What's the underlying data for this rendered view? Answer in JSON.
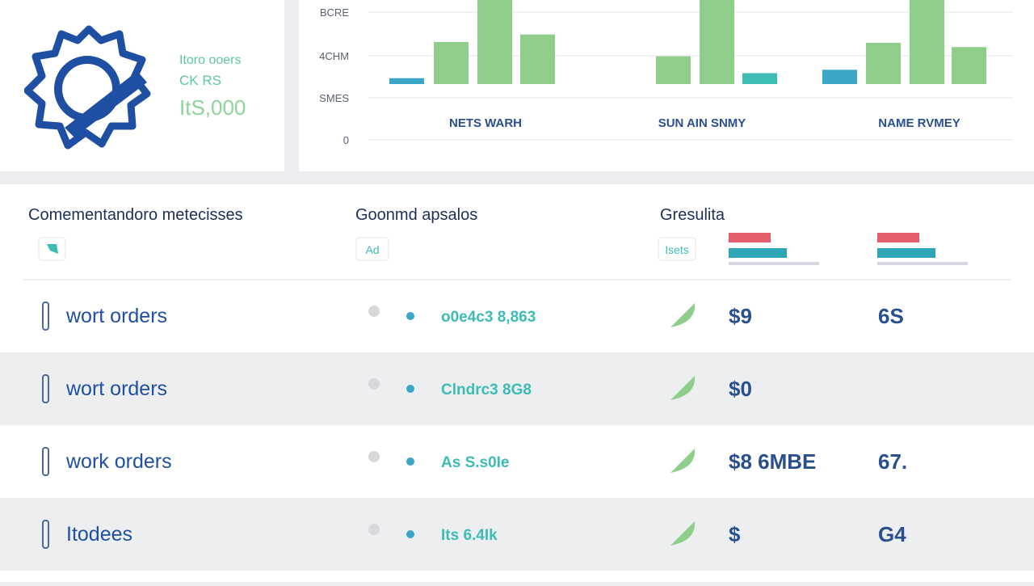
{
  "summary": {
    "line1": "Itoro ooers",
    "line2": "CK RS",
    "amount": "ItS,000"
  },
  "chart": {
    "type": "bar",
    "y_labels": [
      "BCRE",
      "4CHM",
      "SMES",
      "0"
    ],
    "ylim": [
      0,
      100
    ],
    "groups": [
      {
        "label": "NETS WARH",
        "bars": [
          {
            "value": 7,
            "color": "#3aa6c8"
          },
          {
            "value": 50,
            "color": "#8fce8a"
          },
          {
            "value": 100,
            "color": "#8fce8a"
          },
          {
            "value": 59,
            "color": "#8fce8a"
          }
        ]
      },
      {
        "label": "SUN AIN SNMY",
        "bars": [
          {
            "value": 33,
            "color": "#8fce8a"
          },
          {
            "value": 100,
            "color": "#8fce8a"
          },
          {
            "value": 13,
            "color": "#3dbcb4"
          }
        ]
      },
      {
        "label": "NAME RVMEY",
        "bars": [
          {
            "value": 17,
            "color": "#3aa6c8"
          },
          {
            "value": 49,
            "color": "#8fce8a"
          },
          {
            "value": 100,
            "color": "#8fce8a"
          },
          {
            "value": 44,
            "color": "#8fce8a"
          }
        ]
      }
    ]
  },
  "table": {
    "headers": [
      "Comementandoro metecisses",
      "Goonmd apsalos",
      "Gresulita"
    ],
    "badges": [
      "Ad",
      "Isets"
    ],
    "rows": [
      [
        "wort orders",
        "o0e4c3 8,863",
        "$9",
        "6S"
      ],
      [
        "wort orders",
        "Clndrc3 8G8",
        "$0",
        ""
      ],
      [
        "work orders",
        "As S.s0Ie",
        "$8 6MBE",
        "67."
      ],
      [
        "Itodees",
        "Its 6.4Ik",
        "$",
        "G4"
      ]
    ]
  }
}
